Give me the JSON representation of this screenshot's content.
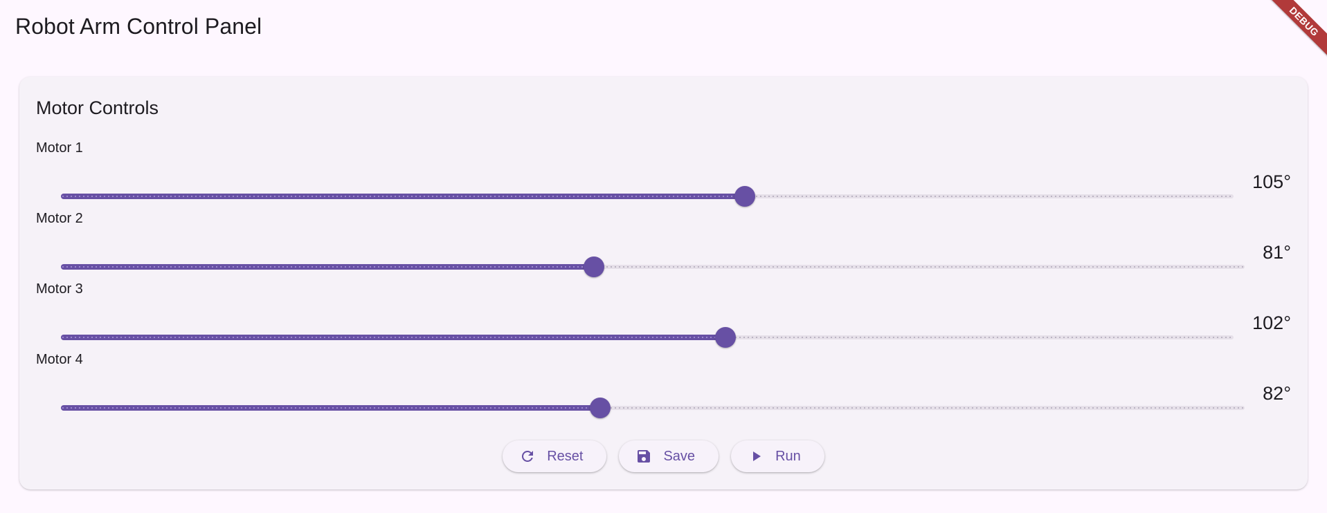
{
  "app": {
    "title": "Robot Arm Control Panel",
    "debug_banner": "DEBUG"
  },
  "card": {
    "title": "Motor Controls"
  },
  "motors": [
    {
      "label": "Motor 1",
      "value_text": "105°",
      "value": 105,
      "min": 0,
      "max": 180
    },
    {
      "label": "Motor 2",
      "value_text": "81°",
      "value": 81,
      "min": 0,
      "max": 180
    },
    {
      "label": "Motor 3",
      "value_text": "102°",
      "value": 102,
      "min": 0,
      "max": 180
    },
    {
      "label": "Motor 4",
      "value_text": "82°",
      "value": 82,
      "min": 0,
      "max": 180
    }
  ],
  "buttons": {
    "reset": {
      "label": "Reset",
      "icon": "refresh-icon"
    },
    "save": {
      "label": "Save",
      "icon": "save-icon"
    },
    "run": {
      "label": "Run",
      "icon": "play-icon"
    }
  },
  "colors": {
    "accent": "#6750a4",
    "track_inactive": "#e6e0e9",
    "background": "#fef7ff",
    "card": "#f6f2f8",
    "debug": "#b13a3a"
  }
}
